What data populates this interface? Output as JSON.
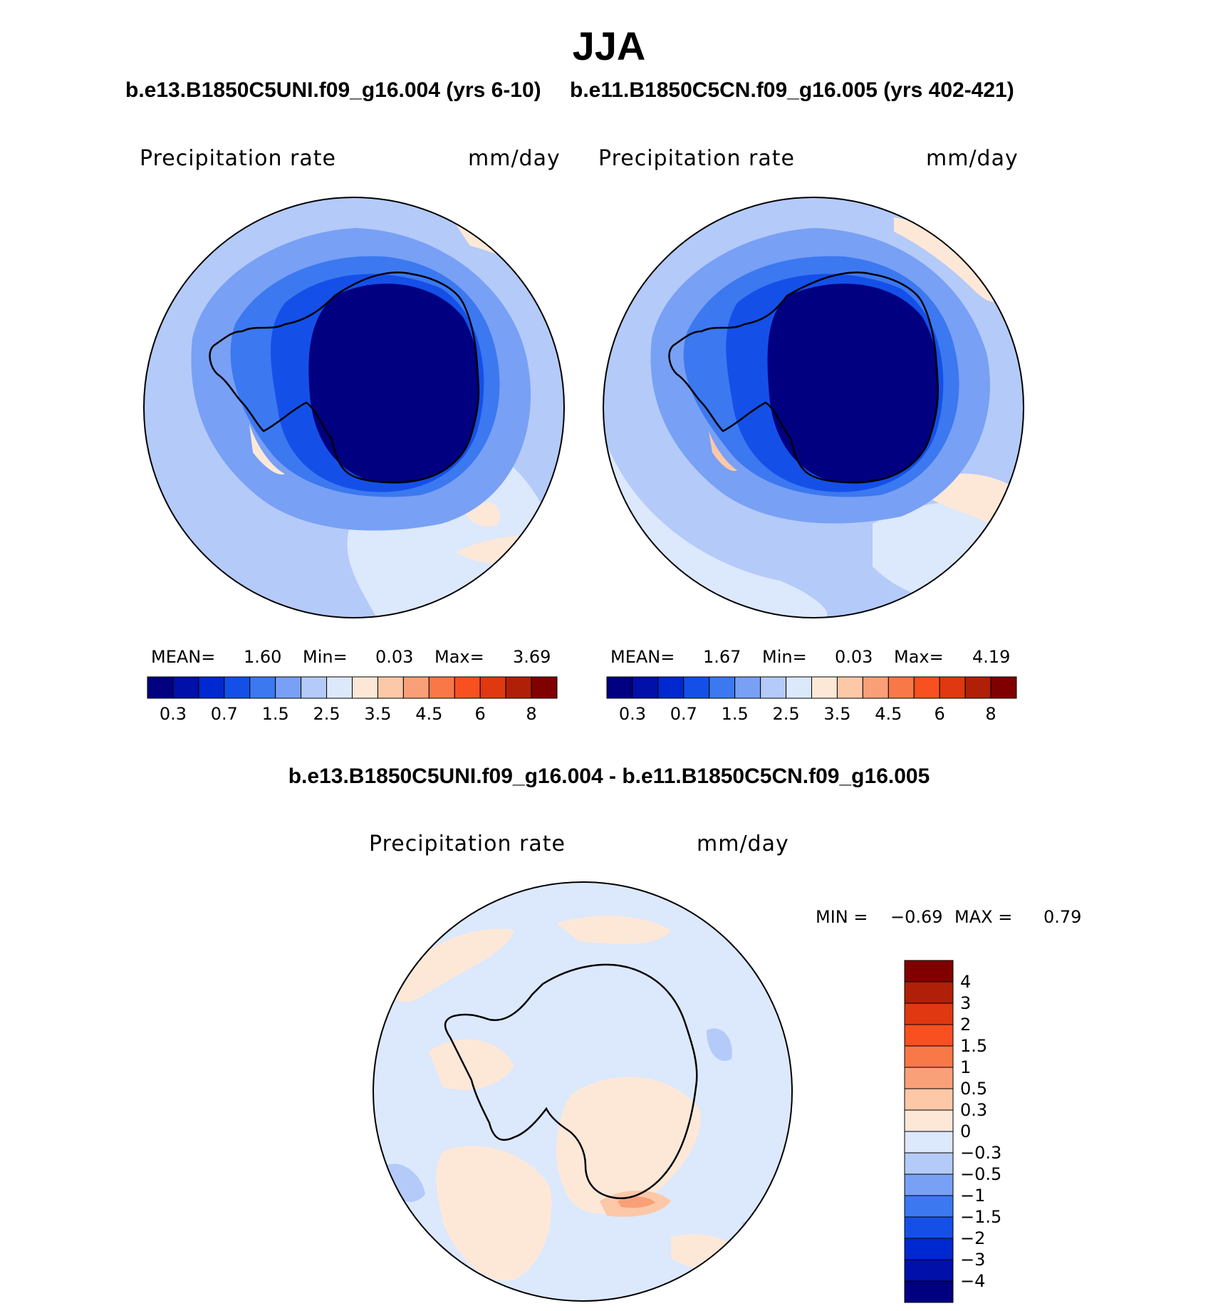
{
  "page": {
    "title": "JJA",
    "diff_title": "b.e13.B1850C5UNI.f09_g16.004 - b.e11.B1850C5CN.f09_g16.005"
  },
  "chart_data": [
    {
      "type": "heatmap",
      "panel": "top-left",
      "title": "b.e13.B1850C5UNI.f09_g16.004 (yrs 6-10)",
      "variable": "Precipitation rate",
      "units": "mm/day",
      "projection": "south-polar-stereographic",
      "stats": {
        "mean_label": "MEAN=",
        "mean": "1.60",
        "min_label": "Min=",
        "min": "0.03",
        "max_label": "Max=",
        "max": "3.69"
      },
      "colorbar": {
        "orientation": "horizontal",
        "levels": [
          0.2,
          0.3,
          0.5,
          0.7,
          1,
          1.5,
          2,
          2.5,
          3,
          3.5,
          4,
          4.5,
          5,
          6,
          7,
          8
        ],
        "tick_labels": [
          "0.3",
          "0.7",
          "1.5",
          "2.5",
          "3.5",
          "4.5",
          "6",
          "8"
        ],
        "colors": [
          "#000080",
          "#0010a8",
          "#0028d0",
          "#1450e8",
          "#3c78f0",
          "#78a0f5",
          "#b4caf8",
          "#dce8fc",
          "#fde8d8",
          "#fcc8a8",
          "#faa078",
          "#f87848",
          "#f85020",
          "#e03810",
          "#b02008",
          "#800000"
        ]
      }
    },
    {
      "type": "heatmap",
      "panel": "top-right",
      "title": "b.e11.B1850C5CN.f09_g16.005 (yrs 402-421)",
      "variable": "Precipitation rate",
      "units": "mm/day",
      "projection": "south-polar-stereographic",
      "stats": {
        "mean_label": "MEAN=",
        "mean": "1.67",
        "min_label": "Min=",
        "min": "0.03",
        "max_label": "Max=",
        "max": "4.19"
      },
      "colorbar": {
        "orientation": "horizontal",
        "levels": [
          0.2,
          0.3,
          0.5,
          0.7,
          1,
          1.5,
          2,
          2.5,
          3,
          3.5,
          4,
          4.5,
          5,
          6,
          7,
          8
        ],
        "tick_labels": [
          "0.3",
          "0.7",
          "1.5",
          "2.5",
          "3.5",
          "4.5",
          "6",
          "8"
        ],
        "colors": [
          "#000080",
          "#0010a8",
          "#0028d0",
          "#1450e8",
          "#3c78f0",
          "#78a0f5",
          "#b4caf8",
          "#dce8fc",
          "#fde8d8",
          "#fcc8a8",
          "#faa078",
          "#f87848",
          "#f85020",
          "#e03810",
          "#b02008",
          "#800000"
        ]
      }
    },
    {
      "type": "heatmap",
      "panel": "bottom-difference",
      "title": "b.e13.B1850C5UNI.f09_g16.004 - b.e11.B1850C5CN.f09_g16.005",
      "variable": "Precipitation rate",
      "units": "mm/day",
      "projection": "south-polar-stereographic",
      "stats": {
        "min_label": "MIN =",
        "min": "−0.69",
        "max_label": "MAX =",
        "max": "0.79"
      },
      "colorbar": {
        "orientation": "vertical",
        "levels_top_to_bottom": [
          4,
          3,
          2,
          1.5,
          1,
          0.5,
          0.3,
          0,
          -0.3,
          -0.5,
          -1,
          -1.5,
          -2,
          -3,
          -4
        ],
        "tick_labels": [
          "4",
          "3",
          "2",
          "1.5",
          "1",
          "0.5",
          "0.3",
          "0",
          "−0.3",
          "−0.5",
          "−1",
          "−1.5",
          "−2",
          "−3",
          "−4"
        ],
        "colors_top_to_bottom": [
          "#800000",
          "#b02008",
          "#e03810",
          "#f85020",
          "#f87848",
          "#faa078",
          "#fcc8a8",
          "#fde8d8",
          "#dce8fc",
          "#b4caf8",
          "#78a0f5",
          "#3c78f0",
          "#1450e8",
          "#0028d0",
          "#0010a8",
          "#000080"
        ]
      }
    }
  ]
}
